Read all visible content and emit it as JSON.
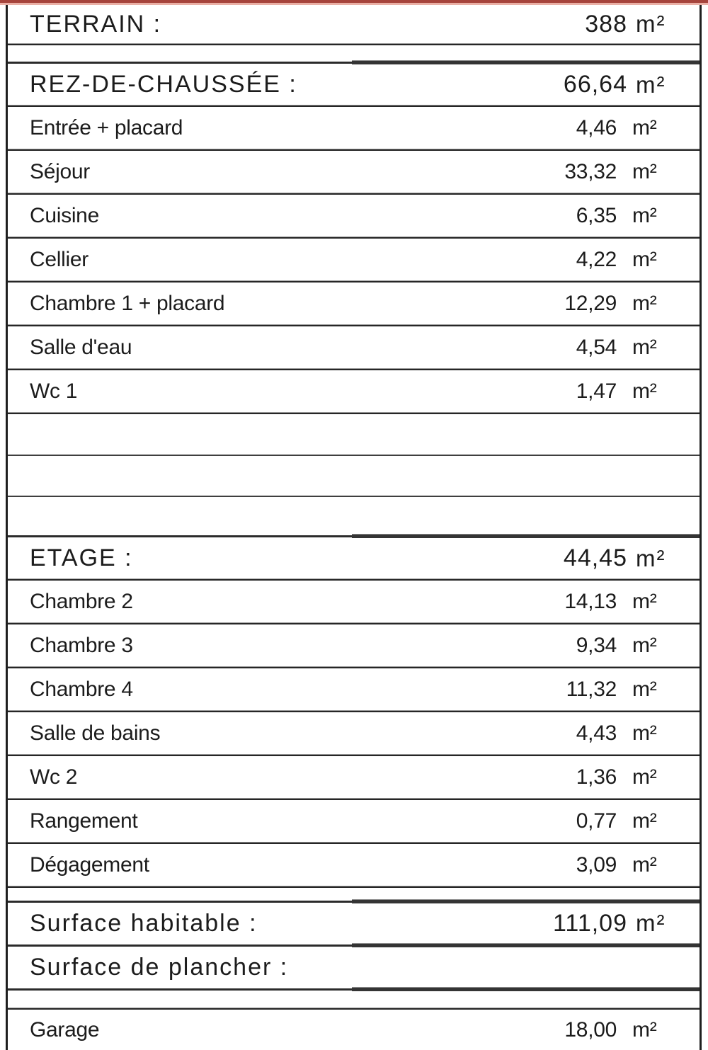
{
  "unit_label": "m²",
  "colors": {
    "accent_bar_dark": "#a6443c",
    "accent_bar_light": "#eab0a6",
    "border": "#1f1f1f",
    "text": "#1c1c1c"
  },
  "terrain": {
    "label": "TERRAIN :",
    "value": "388"
  },
  "ground_floor": {
    "header": {
      "label": "REZ-DE-CHAUSSÉE :",
      "value": "66,64"
    },
    "rows": [
      {
        "label": "Entrée + placard",
        "value": "4,46"
      },
      {
        "label": "Séjour",
        "value": "33,32"
      },
      {
        "label": "Cuisine",
        "value": "6,35"
      },
      {
        "label": "Cellier",
        "value": "4,22"
      },
      {
        "label": "Chambre 1 + placard",
        "value": "12,29"
      },
      {
        "label": "Salle d'eau",
        "value": "4,54"
      },
      {
        "label": "Wc 1",
        "value": "1,47"
      }
    ]
  },
  "first_floor": {
    "header": {
      "label": "ETAGE :",
      "value": "44,45"
    },
    "rows": [
      {
        "label": "Chambre 2",
        "value": "14,13"
      },
      {
        "label": "Chambre 3",
        "value": "9,34"
      },
      {
        "label": "Chambre 4",
        "value": "11,32"
      },
      {
        "label": "Salle de bains",
        "value": "4,43"
      },
      {
        "label": "Wc 2",
        "value": "1,36"
      },
      {
        "label": "Rangement",
        "value": "0,77"
      },
      {
        "label": "Dégagement",
        "value": "3,09"
      }
    ]
  },
  "summary": {
    "habitable": {
      "label": "Surface habitable :",
      "value": "111,09"
    },
    "plancher": {
      "label": "Surface de plancher :"
    }
  },
  "annex": {
    "garage": {
      "label": "Garage",
      "value": "18,00"
    }
  }
}
